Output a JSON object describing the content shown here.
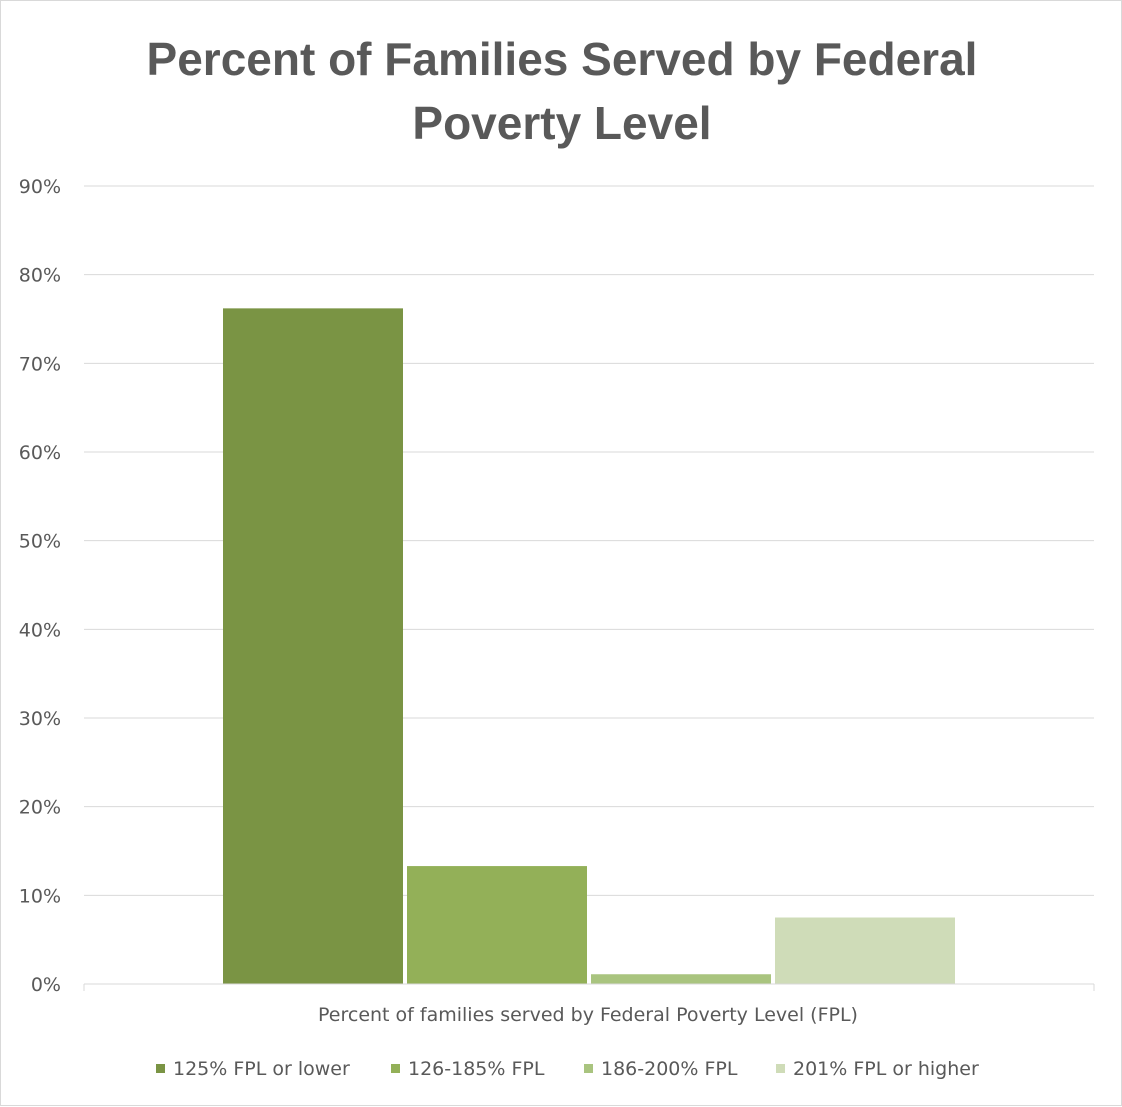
{
  "chart_data": {
    "type": "bar",
    "title_lines": [
      "Percent of Families Served by Federal",
      "Poverty Level"
    ],
    "xlabel": "Percent of families served by Federal Poverty Level (FPL)",
    "ylabel": "",
    "ylim": [
      0,
      90
    ],
    "yticks": [
      "0%",
      "10%",
      "20%",
      "30%",
      "40%",
      "50%",
      "60%",
      "70%",
      "80%",
      "90%"
    ],
    "grid": true,
    "legend_position": "bottom",
    "categories": [
      "Percent of families served by Federal Poverty Level (FPL)"
    ],
    "series": [
      {
        "name": "125% FPL or lower",
        "values": [
          76.2
        ],
        "color": "#7a9444"
      },
      {
        "name": "126-185% FPL",
        "values": [
          13.3
        ],
        "color": "#93b058"
      },
      {
        "name": "186-200% FPL",
        "values": [
          1.1
        ],
        "color": "#a9c47f"
      },
      {
        "name": "201% FPL or higher",
        "values": [
          7.5
        ],
        "color": "#cfdcb8"
      }
    ]
  }
}
